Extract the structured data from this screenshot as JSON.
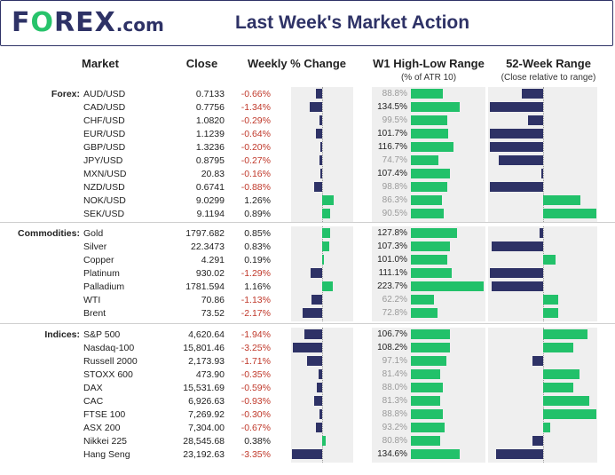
{
  "header": {
    "logo_main": "F",
    "logo_o": "O",
    "logo_rest": "REX",
    "logo_com": ".com",
    "title": "Last Week's Market Action"
  },
  "columns": {
    "market": "Market",
    "close": "Close",
    "weekly": "Weekly % Change",
    "w1": "W1 High-Low Range",
    "w1_sub": "(% of ATR 10)",
    "wk52": "52-Week Range",
    "wk52_sub": "(Close relative to range)"
  },
  "colors": {
    "navy": "#2e3266",
    "green": "#22c16a",
    "red": "#c0392b",
    "panel": "#efefef"
  },
  "chart_data": {
    "type": "table",
    "groups": [
      {
        "label": "Forex:",
        "rows": [
          {
            "market": "AUD/USD",
            "close": "0.7133",
            "weekly": -0.66,
            "weekly_text": "-0.66%",
            "range": 88.8,
            "range_text": "88.8%",
            "pos52": 0.3
          },
          {
            "market": "CAD/USD",
            "close": "0.7756",
            "weekly": -1.34,
            "weekly_text": "-1.34%",
            "range": 134.5,
            "range_text": "134.5%",
            "pos52": 0.0
          },
          {
            "market": "CHF/USD",
            "close": "1.0820",
            "weekly": -0.29,
            "weekly_text": "-0.29%",
            "range": 99.5,
            "range_text": "99.5%",
            "pos52": 0.36
          },
          {
            "market": "EUR/USD",
            "close": "1.1239",
            "weekly": -0.64,
            "weekly_text": "-0.64%",
            "range": 101.7,
            "range_text": "101.7%",
            "pos52": 0.0
          },
          {
            "market": "GBP/USD",
            "close": "1.3236",
            "weekly": -0.2,
            "weekly_text": "-0.20%",
            "range": 116.7,
            "range_text": "116.7%",
            "pos52": 0.0
          },
          {
            "market": "JPY/USD",
            "close": "0.8795",
            "weekly": -0.27,
            "weekly_text": "-0.27%",
            "range": 74.7,
            "range_text": "74.7%",
            "pos52": 0.08
          },
          {
            "market": "MXN/USD",
            "close": "20.83",
            "weekly": -0.16,
            "weekly_text": "-0.16%",
            "range": 107.4,
            "range_text": "107.4%",
            "pos52": 0.48
          },
          {
            "market": "NZD/USD",
            "close": "0.6741",
            "weekly": -0.88,
            "weekly_text": "-0.88%",
            "range": 98.8,
            "range_text": "98.8%",
            "pos52": 0.0
          },
          {
            "market": "NOK/USD",
            "close": "9.0299",
            "weekly": 1.26,
            "weekly_text": "1.26%",
            "range": 86.3,
            "range_text": "86.3%",
            "pos52": 0.85
          },
          {
            "market": "SEK/USD",
            "close": "9.1194",
            "weekly": 0.89,
            "weekly_text": "0.89%",
            "range": 90.5,
            "range_text": "90.5%",
            "pos52": 1.0
          }
        ]
      },
      {
        "label": "Commodities:",
        "rows": [
          {
            "market": "Gold",
            "close": "1797.682",
            "weekly": 0.85,
            "weekly_text": "0.85%",
            "range": 127.8,
            "range_text": "127.8%",
            "pos52": 0.47
          },
          {
            "market": "Silver",
            "close": "22.3473",
            "weekly": 0.83,
            "weekly_text": "0.83%",
            "range": 107.3,
            "range_text": "107.3%",
            "pos52": 0.02
          },
          {
            "market": "Copper",
            "close": "4.291",
            "weekly": 0.19,
            "weekly_text": "0.19%",
            "range": 101.0,
            "range_text": "101.0%",
            "pos52": 0.62
          },
          {
            "market": "Platinum",
            "close": "930.02",
            "weekly": -1.29,
            "weekly_text": "-1.29%",
            "range": 111.1,
            "range_text": "111.1%",
            "pos52": 0.0
          },
          {
            "market": "Palladium",
            "close": "1781.594",
            "weekly": 1.16,
            "weekly_text": "1.16%",
            "range": 223.7,
            "range_text": "223.7%",
            "pos52": 0.02
          },
          {
            "market": "WTI",
            "close": "70.86",
            "weekly": -1.13,
            "weekly_text": "-1.13%",
            "range": 62.2,
            "range_text": "62.2%",
            "pos52": 0.64
          },
          {
            "market": "Brent",
            "close": "73.52",
            "weekly": -2.17,
            "weekly_text": "-2.17%",
            "range": 72.8,
            "range_text": "72.8%",
            "pos52": 0.64
          }
        ]
      },
      {
        "label": "Indices:",
        "rows": [
          {
            "market": "S&P 500",
            "close": "4,620.64",
            "weekly": -1.94,
            "weekly_text": "-1.94%",
            "range": 106.7,
            "range_text": "106.7%",
            "pos52": 0.92
          },
          {
            "market": "Nasdaq-100",
            "close": "15,801.46",
            "weekly": -3.25,
            "weekly_text": "-3.25%",
            "range": 108.2,
            "range_text": "108.2%",
            "pos52": 0.78
          },
          {
            "market": "Russell 2000",
            "close": "2,173.93",
            "weekly": -1.71,
            "weekly_text": "-1.71%",
            "range": 97.1,
            "range_text": "97.1%",
            "pos52": 0.4
          },
          {
            "market": "STOXX 600",
            "close": "473.90",
            "weekly": -0.35,
            "weekly_text": "-0.35%",
            "range": 81.4,
            "range_text": "81.4%",
            "pos52": 0.84
          },
          {
            "market": "DAX",
            "close": "15,531.69",
            "weekly": -0.59,
            "weekly_text": "-0.59%",
            "range": 88.0,
            "range_text": "88.0%",
            "pos52": 0.78
          },
          {
            "market": "CAC",
            "close": "6,926.63",
            "weekly": -0.93,
            "weekly_text": "-0.93%",
            "range": 81.3,
            "range_text": "81.3%",
            "pos52": 0.93
          },
          {
            "market": "FTSE 100",
            "close": "7,269.92",
            "weekly": -0.3,
            "weekly_text": "-0.30%",
            "range": 88.8,
            "range_text": "88.8%",
            "pos52": 1.0
          },
          {
            "market": "ASX 200",
            "close": "7,304.00",
            "weekly": -0.67,
            "weekly_text": "-0.67%",
            "range": 93.2,
            "range_text": "93.2%",
            "pos52": 0.57
          },
          {
            "market": "Nikkei 225",
            "close": "28,545.68",
            "weekly": 0.38,
            "weekly_text": "0.38%",
            "range": 80.8,
            "range_text": "80.8%",
            "pos52": 0.4
          },
          {
            "market": "Hang Seng",
            "close": "23,192.63",
            "weekly": -3.35,
            "weekly_text": "-3.35%",
            "range": 134.6,
            "range_text": "134.6%",
            "pos52": 0.06
          }
        ]
      }
    ]
  }
}
